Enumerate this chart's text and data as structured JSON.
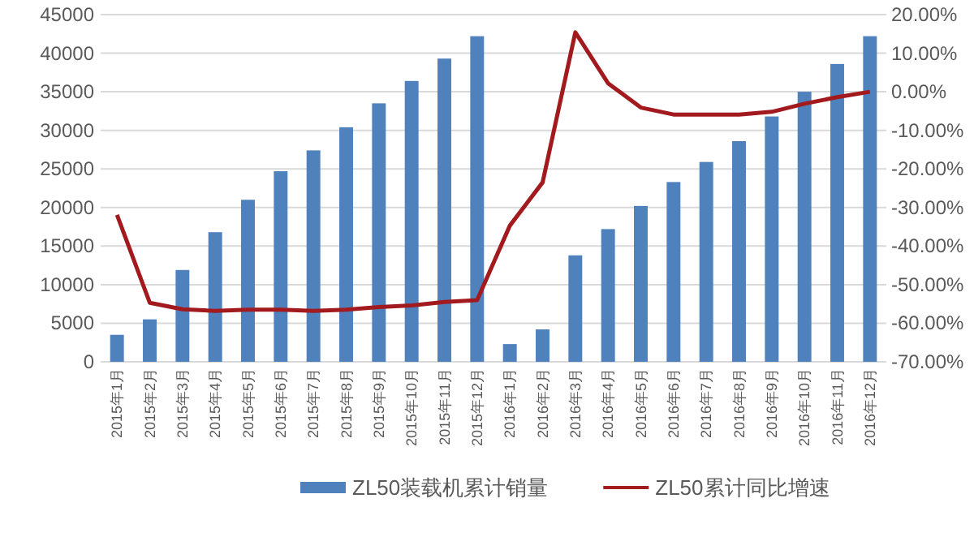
{
  "chart_data": {
    "type": "bar",
    "categories": [
      "2015年1月",
      "2015年2月",
      "2015年3月",
      "2015年4月",
      "2015年5月",
      "2015年6月",
      "2015年7月",
      "2015年8月",
      "2015年9月",
      "2015年10月",
      "2015年11月",
      "2015年12月",
      "2016年1月",
      "2016年2月",
      "2016年3月",
      "2016年4月",
      "2016年5月",
      "2016年6月",
      "2016年7月",
      "2016年8月",
      "2016年9月",
      "2016年10月",
      "2016年11月",
      "2016年12月"
    ],
    "series": [
      {
        "name": "ZL50装载机累计销量",
        "color": "#4f81bd",
        "values": [
          3500,
          5500,
          11900,
          16800,
          21000,
          24700,
          27400,
          30400,
          33500,
          36400,
          39300,
          42200,
          2300,
          4200,
          13800,
          17200,
          20200,
          23300,
          25900,
          28600,
          31800,
          35000,
          38600,
          42200
        ]
      },
      {
        "name": "ZL50累计同比增速",
        "type": "line",
        "axis": "y2",
        "color": "#a31a1e",
        "values": [
          -31.9,
          -54.7,
          -56.4,
          -56.8,
          -56.5,
          -56.5,
          -56.8,
          -56.5,
          -55.8,
          -55.4,
          -54.5,
          -54.0,
          -34.7,
          -23.5,
          15.4,
          2.2,
          -4.1,
          -5.9,
          -5.9,
          -5.9,
          -5.2,
          -3.1,
          -1.4,
          0
        ]
      }
    ],
    "ylim": [
      0,
      45000
    ],
    "yticks": [
      0,
      5000,
      10000,
      15000,
      20000,
      25000,
      30000,
      35000,
      40000,
      45000
    ],
    "y2lim": [
      -70,
      20
    ],
    "y2ticks": [
      {
        "value": 20,
        "label": "20.00%"
      },
      {
        "value": 10,
        "label": "10.00%"
      },
      {
        "value": 0,
        "label": "0.00%"
      },
      {
        "value": -10,
        "label": "-10.00%"
      },
      {
        "value": -20,
        "label": "-20.00%"
      },
      {
        "value": -30,
        "label": "-30.00%"
      },
      {
        "value": -40,
        "label": "-40.00%"
      },
      {
        "value": -50,
        "label": "-50.00%"
      },
      {
        "value": -60,
        "label": "-60.00%"
      },
      {
        "value": -70,
        "label": "-70.00%"
      }
    ],
    "grid": "y",
    "legend": "bottom",
    "marker": "none",
    "line_style": "solid"
  }
}
